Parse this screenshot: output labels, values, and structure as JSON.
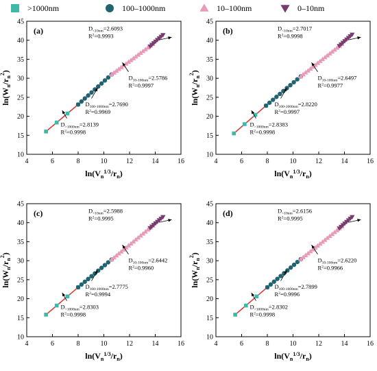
{
  "legend": {
    "items": [
      {
        "label": ">1000nm",
        "marker": "square",
        "color": "#3fb8a8"
      },
      {
        "label": "100–1000nm",
        "marker": "circle",
        "color": "#1f6470"
      },
      {
        "label": "10–100nm",
        "marker": "triangle-up",
        "color": "#e79bb8"
      },
      {
        "label": "0–10nm",
        "marker": "triangle-down",
        "color": "#7a3b6e"
      }
    ]
  },
  "fit_line_color": "#d93a3a",
  "chart_data": [
    {
      "type": "scatter",
      "panel_label": "(a)",
      "xlabel": "ln(Vn1/3/rn)",
      "ylabel": "ln(Wn/rn2)",
      "xlim": [
        4,
        16
      ],
      "ylim": [
        10,
        45
      ],
      "xticks": [
        4,
        6,
        8,
        10,
        12,
        14,
        16
      ],
      "yticks": [
        10,
        15,
        20,
        25,
        30,
        35,
        40,
        45
      ],
      "series": [
        {
          "name": ">1000nm",
          "marker": "square",
          "x_range": [
            5.5,
            8.0
          ],
          "y_range": [
            16.0,
            23.1
          ],
          "n": 4
        },
        {
          "name": "100–1000nm",
          "marker": "circle",
          "x_range": [
            8.0,
            10.6
          ],
          "y_range": [
            23.1,
            31.0
          ],
          "n": 11
        },
        {
          "name": "10–100nm",
          "marker": "triangle-up",
          "x_range": [
            10.6,
            13.8
          ],
          "y_range": [
            31.0,
            39.0
          ],
          "n": 18
        },
        {
          "name": "0–10nm",
          "marker": "triangle-down",
          "x_range": [
            13.6,
            14.6
          ],
          "y_range": [
            38.4,
            41.4
          ],
          "n": 8
        }
      ],
      "annotations": [
        {
          "name": "D",
          "sub": "<10nm",
          "value": "=2.6093",
          "r2": "R2=0.9993"
        },
        {
          "name": "D",
          "sub": "10-100nm",
          "value": "=2.5786",
          "r2": "R2=0.9997"
        },
        {
          "name": "D",
          "sub": "100-1000nm",
          "value": "=2.7690",
          "r2": "R2=0.9969"
        },
        {
          "name": "D",
          "sub": ">1000nm",
          "value": "=2.8139",
          "r2": "R2=0.9998"
        }
      ]
    },
    {
      "type": "scatter",
      "panel_label": "(b)",
      "xlabel": "ln(Vn1/3/rn)",
      "ylabel": "ln(Wn/rn2)",
      "xlim": [
        4,
        16
      ],
      "ylim": [
        10,
        45
      ],
      "xticks": [
        4,
        6,
        8,
        10,
        12,
        14,
        16
      ],
      "yticks": [
        10,
        15,
        20,
        25,
        30,
        35,
        40,
        45
      ],
      "series": [
        {
          "name": ">1000nm",
          "marker": "square",
          "x_range": [
            5.4,
            7.9
          ],
          "y_range": [
            15.5,
            22.8
          ],
          "n": 4
        },
        {
          "name": "100–1000nm",
          "marker": "circle",
          "x_range": [
            7.9,
            10.6
          ],
          "y_range": [
            22.8,
            30.5
          ],
          "n": 11
        },
        {
          "name": "10–100nm",
          "marker": "triangle-up",
          "x_range": [
            10.6,
            13.8
          ],
          "y_range": [
            30.5,
            39.0
          ],
          "n": 18
        },
        {
          "name": "0–10nm",
          "marker": "triangle-down",
          "x_range": [
            13.6,
            14.6
          ],
          "y_range": [
            38.5,
            41.5
          ],
          "n": 8
        }
      ],
      "annotations": [
        {
          "name": "D",
          "sub": "<10nm",
          "value": "=2.7017",
          "r2": "R2=0.9998"
        },
        {
          "name": "D",
          "sub": "10-100nm",
          "value": "=2.6497",
          "r2": "R2=0.9977"
        },
        {
          "name": "D",
          "sub": "100-1000nm",
          "value": "=2.8220",
          "r2": "R2=0.9997"
        },
        {
          "name": "D",
          "sub": ">1000nm",
          "value": "=2.8383",
          "r2": "R2=0.9998"
        }
      ]
    },
    {
      "type": "scatter",
      "panel_label": "(c)",
      "xlabel": "ln(Vn1/3/rn)",
      "ylabel": "ln(Wn/rn2)",
      "xlim": [
        4,
        16
      ],
      "ylim": [
        10,
        45
      ],
      "xticks": [
        4,
        6,
        8,
        10,
        12,
        14,
        16
      ],
      "yticks": [
        10,
        15,
        20,
        25,
        30,
        35,
        40,
        45
      ],
      "series": [
        {
          "name": ">1000nm",
          "marker": "square",
          "x_range": [
            5.5,
            8.0
          ],
          "y_range": [
            15.8,
            23.0
          ],
          "n": 4
        },
        {
          "name": "100–1000nm",
          "marker": "circle",
          "x_range": [
            8.0,
            10.6
          ],
          "y_range": [
            23.0,
            30.3
          ],
          "n": 11
        },
        {
          "name": "10–100nm",
          "marker": "triangle-up",
          "x_range": [
            10.6,
            13.8
          ],
          "y_range": [
            30.3,
            39.2
          ],
          "n": 18
        },
        {
          "name": "0–10nm",
          "marker": "triangle-down",
          "x_range": [
            13.6,
            14.6
          ],
          "y_range": [
            38.6,
            41.5
          ],
          "n": 8
        }
      ],
      "annotations": [
        {
          "name": "D",
          "sub": "<10nm",
          "value": "=2.5988",
          "r2": "R2=0.9995"
        },
        {
          "name": "D",
          "sub": "10-100nm",
          "value": "=2.6442",
          "r2": "R2=0.9960"
        },
        {
          "name": "D",
          "sub": "100-1000nm",
          "value": "=2.7775",
          "r2": "R2=0.9994"
        },
        {
          "name": "D",
          "sub": ">1000nm",
          "value": "=2.8303",
          "r2": "R2=0.9998"
        }
      ]
    },
    {
      "type": "scatter",
      "panel_label": "(d)",
      "xlabel": "ln(Vn1/3/rn)",
      "ylabel": "ln(Wn/rn2)",
      "xlim": [
        4,
        16
      ],
      "ylim": [
        10,
        45
      ],
      "xticks": [
        4,
        6,
        8,
        10,
        12,
        14,
        16
      ],
      "yticks": [
        10,
        15,
        20,
        25,
        30,
        35,
        40,
        45
      ],
      "series": [
        {
          "name": ">1000nm",
          "marker": "square",
          "x_range": [
            5.5,
            8.0
          ],
          "y_range": [
            15.8,
            23.0
          ],
          "n": 4
        },
        {
          "name": "100–1000nm",
          "marker": "circle",
          "x_range": [
            8.0,
            10.6
          ],
          "y_range": [
            23.0,
            30.4
          ],
          "n": 11
        },
        {
          "name": "10–100nm",
          "marker": "triangle-up",
          "x_range": [
            10.6,
            13.8
          ],
          "y_range": [
            30.4,
            39.0
          ],
          "n": 18
        },
        {
          "name": "0–10nm",
          "marker": "triangle-down",
          "x_range": [
            13.6,
            14.6
          ],
          "y_range": [
            38.5,
            41.5
          ],
          "n": 8
        }
      ],
      "annotations": [
        {
          "name": "D",
          "sub": "<10nm",
          "value": "=2.6156",
          "r2": "R2=0.9995"
        },
        {
          "name": "D",
          "sub": "10-100nm",
          "value": "=2.6220",
          "r2": "R2=0.9966"
        },
        {
          "name": "D",
          "sub": "100-1000nm",
          "value": "=2.7899",
          "r2": "R2=0.9996"
        },
        {
          "name": "D",
          "sub": ">1000nm",
          "value": "=2.8302",
          "r2": "R2=0.9998"
        }
      ]
    }
  ]
}
